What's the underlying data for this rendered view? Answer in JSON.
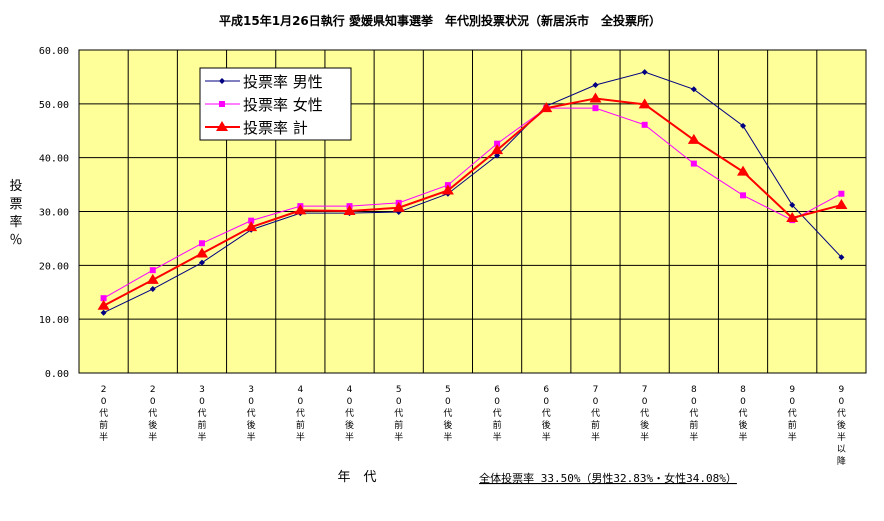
{
  "chart_data": {
    "type": "line",
    "title": "平成15年1月26日執行 愛媛県知事選挙　年代別投票状況（新居浜市　全投票所）",
    "xlabel": "年　代",
    "ylabel": "投票率％",
    "footnote": "全体投票率 33.50%（男性32.83%・女性34.08%）",
    "ylim": [
      0,
      60
    ],
    "yticks": [
      "0.00",
      "10.00",
      "20.00",
      "30.00",
      "40.00",
      "50.00",
      "60.00"
    ],
    "grid": true,
    "legend_position": "top-left",
    "categories": [
      "20代前半",
      "20代後半",
      "30代前半",
      "30代後半",
      "40代前半",
      "40代後半",
      "50代前半",
      "50代後半",
      "60代前半",
      "60代後半",
      "70代前半",
      "70代後半",
      "80代前半",
      "80代後半",
      "90代前半",
      "90代後半以降"
    ],
    "series": [
      {
        "name": "投票率 男性",
        "color": "#000080",
        "marker": "diamond",
        "values": [
          11.2,
          15.6,
          20.5,
          26.6,
          29.7,
          29.7,
          29.9,
          33.3,
          40.4,
          49.6,
          53.5,
          55.9,
          52.7,
          45.9,
          31.2,
          21.5
        ]
      },
      {
        "name": "投票率 女性",
        "color": "#FF00FF",
        "marker": "square",
        "values": [
          13.9,
          19.1,
          24.1,
          28.3,
          31.0,
          31.0,
          31.6,
          34.9,
          42.6,
          49.2,
          49.2,
          46.1,
          38.9,
          33.0,
          28.4,
          33.3
        ]
      },
      {
        "name": "投票率 計",
        "color": "#FF0000",
        "marker": "triangle",
        "values": [
          12.5,
          17.3,
          22.2,
          27.1,
          30.2,
          30.1,
          30.7,
          33.9,
          41.4,
          49.2,
          51.0,
          49.9,
          43.3,
          37.4,
          28.8,
          31.2
        ]
      }
    ]
  }
}
